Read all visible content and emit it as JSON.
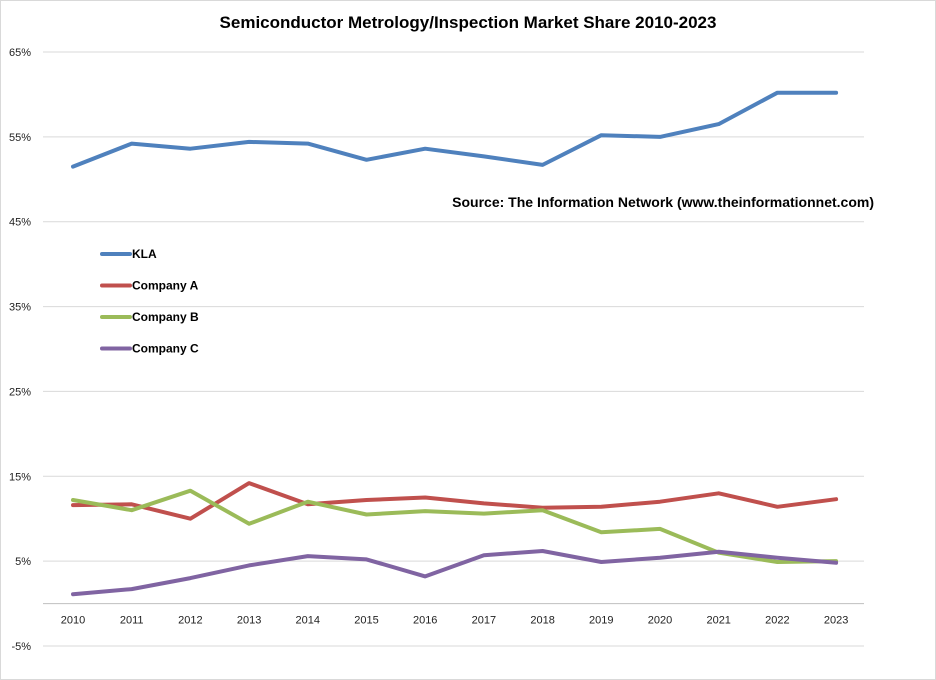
{
  "chart_data": {
    "type": "line",
    "title": "Semiconductor Metrology/Inspection Market Share 2010-2023",
    "annotation": "Source: The Information Network (www.theinformationnet.com)",
    "x": [
      "2010",
      "2011",
      "2012",
      "2013",
      "2014",
      "2015",
      "2016",
      "2017",
      "2018",
      "2019",
      "2020",
      "2021",
      "2022",
      "2023"
    ],
    "ylim": [
      -5,
      65
    ],
    "yticks": [
      -5,
      5,
      15,
      25,
      35,
      45,
      55,
      65
    ],
    "ytick_labels": [
      "-5%",
      "5%",
      "15%",
      "25%",
      "35%",
      "45%",
      "55%",
      "65%"
    ],
    "grid": true,
    "legend_position": "left",
    "series": [
      {
        "name": "KLA",
        "color": "#4f81bd",
        "values": [
          51.5,
          54.2,
          53.6,
          54.4,
          54.2,
          52.3,
          53.6,
          52.7,
          51.7,
          55.2,
          55.0,
          56.5,
          60.2,
          60.2
        ]
      },
      {
        "name": "Company A",
        "color": "#c0504d",
        "values": [
          11.6,
          11.7,
          10.0,
          14.2,
          11.7,
          12.2,
          12.5,
          11.8,
          11.3,
          11.4,
          12.0,
          13.0,
          11.4,
          12.3
        ]
      },
      {
        "name": "Company B",
        "color": "#9bbb59",
        "values": [
          12.2,
          11.0,
          13.3,
          9.4,
          12.0,
          10.5,
          10.9,
          10.6,
          11.0,
          8.4,
          8.8,
          6.0,
          4.9,
          5.0
        ]
      },
      {
        "name": "Company C",
        "color": "#8064a2",
        "values": [
          1.1,
          1.7,
          3.0,
          4.5,
          5.6,
          5.2,
          3.2,
          5.7,
          6.2,
          4.9,
          5.4,
          6.1,
          5.4,
          4.8
        ]
      }
    ]
  }
}
